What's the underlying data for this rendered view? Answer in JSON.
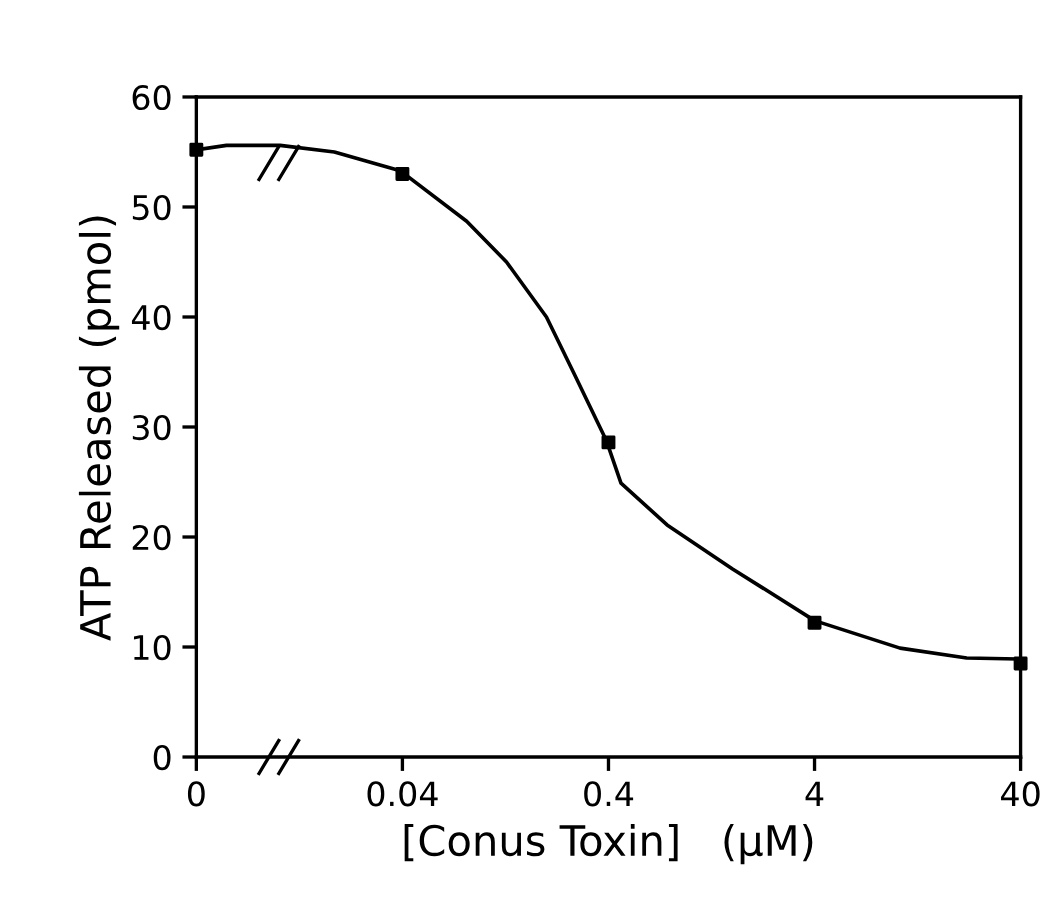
{
  "chart_data": {
    "type": "scatter",
    "xlabel": "[Conus Toxin]   (μM)",
    "ylabel": "ATP Released (pmol)",
    "log": "x",
    "xlim": [
      0.004,
      40
    ],
    "xticks": [
      {
        "value": 0.004,
        "label": "0"
      },
      0.04,
      0.4,
      4,
      40
    ],
    "ylim": [
      0,
      60
    ],
    "yticks": [
      0,
      10,
      20,
      30,
      40,
      50,
      60
    ],
    "grid": false,
    "series": [
      {
        "color": "#000000",
        "marker": "square",
        "x": [
          0.004,
          0.04,
          0.4,
          4,
          40
        ],
        "values": [
          55.2,
          53.0,
          28.6,
          12.2,
          8.5
        ]
      },
      {
        "type": "line",
        "color": "#000000",
        "marker": "none",
        "line_style": "solid",
        "x": [
          0.004,
          0.0056,
          0.0102,
          0.0187,
          0.039,
          0.082,
          0.128,
          0.2,
          0.27,
          0.39,
          0.46,
          0.77,
          1.6,
          4,
          10.4,
          21.9,
          40
        ],
        "values": [
          55.2,
          55.6,
          55.6,
          55.0,
          53.3,
          48.7,
          45.0,
          40.0,
          35.0,
          28.8,
          24.9,
          21.1,
          17.1,
          12.4,
          9.9,
          9.0,
          8.9
        ]
      }
    ]
  }
}
